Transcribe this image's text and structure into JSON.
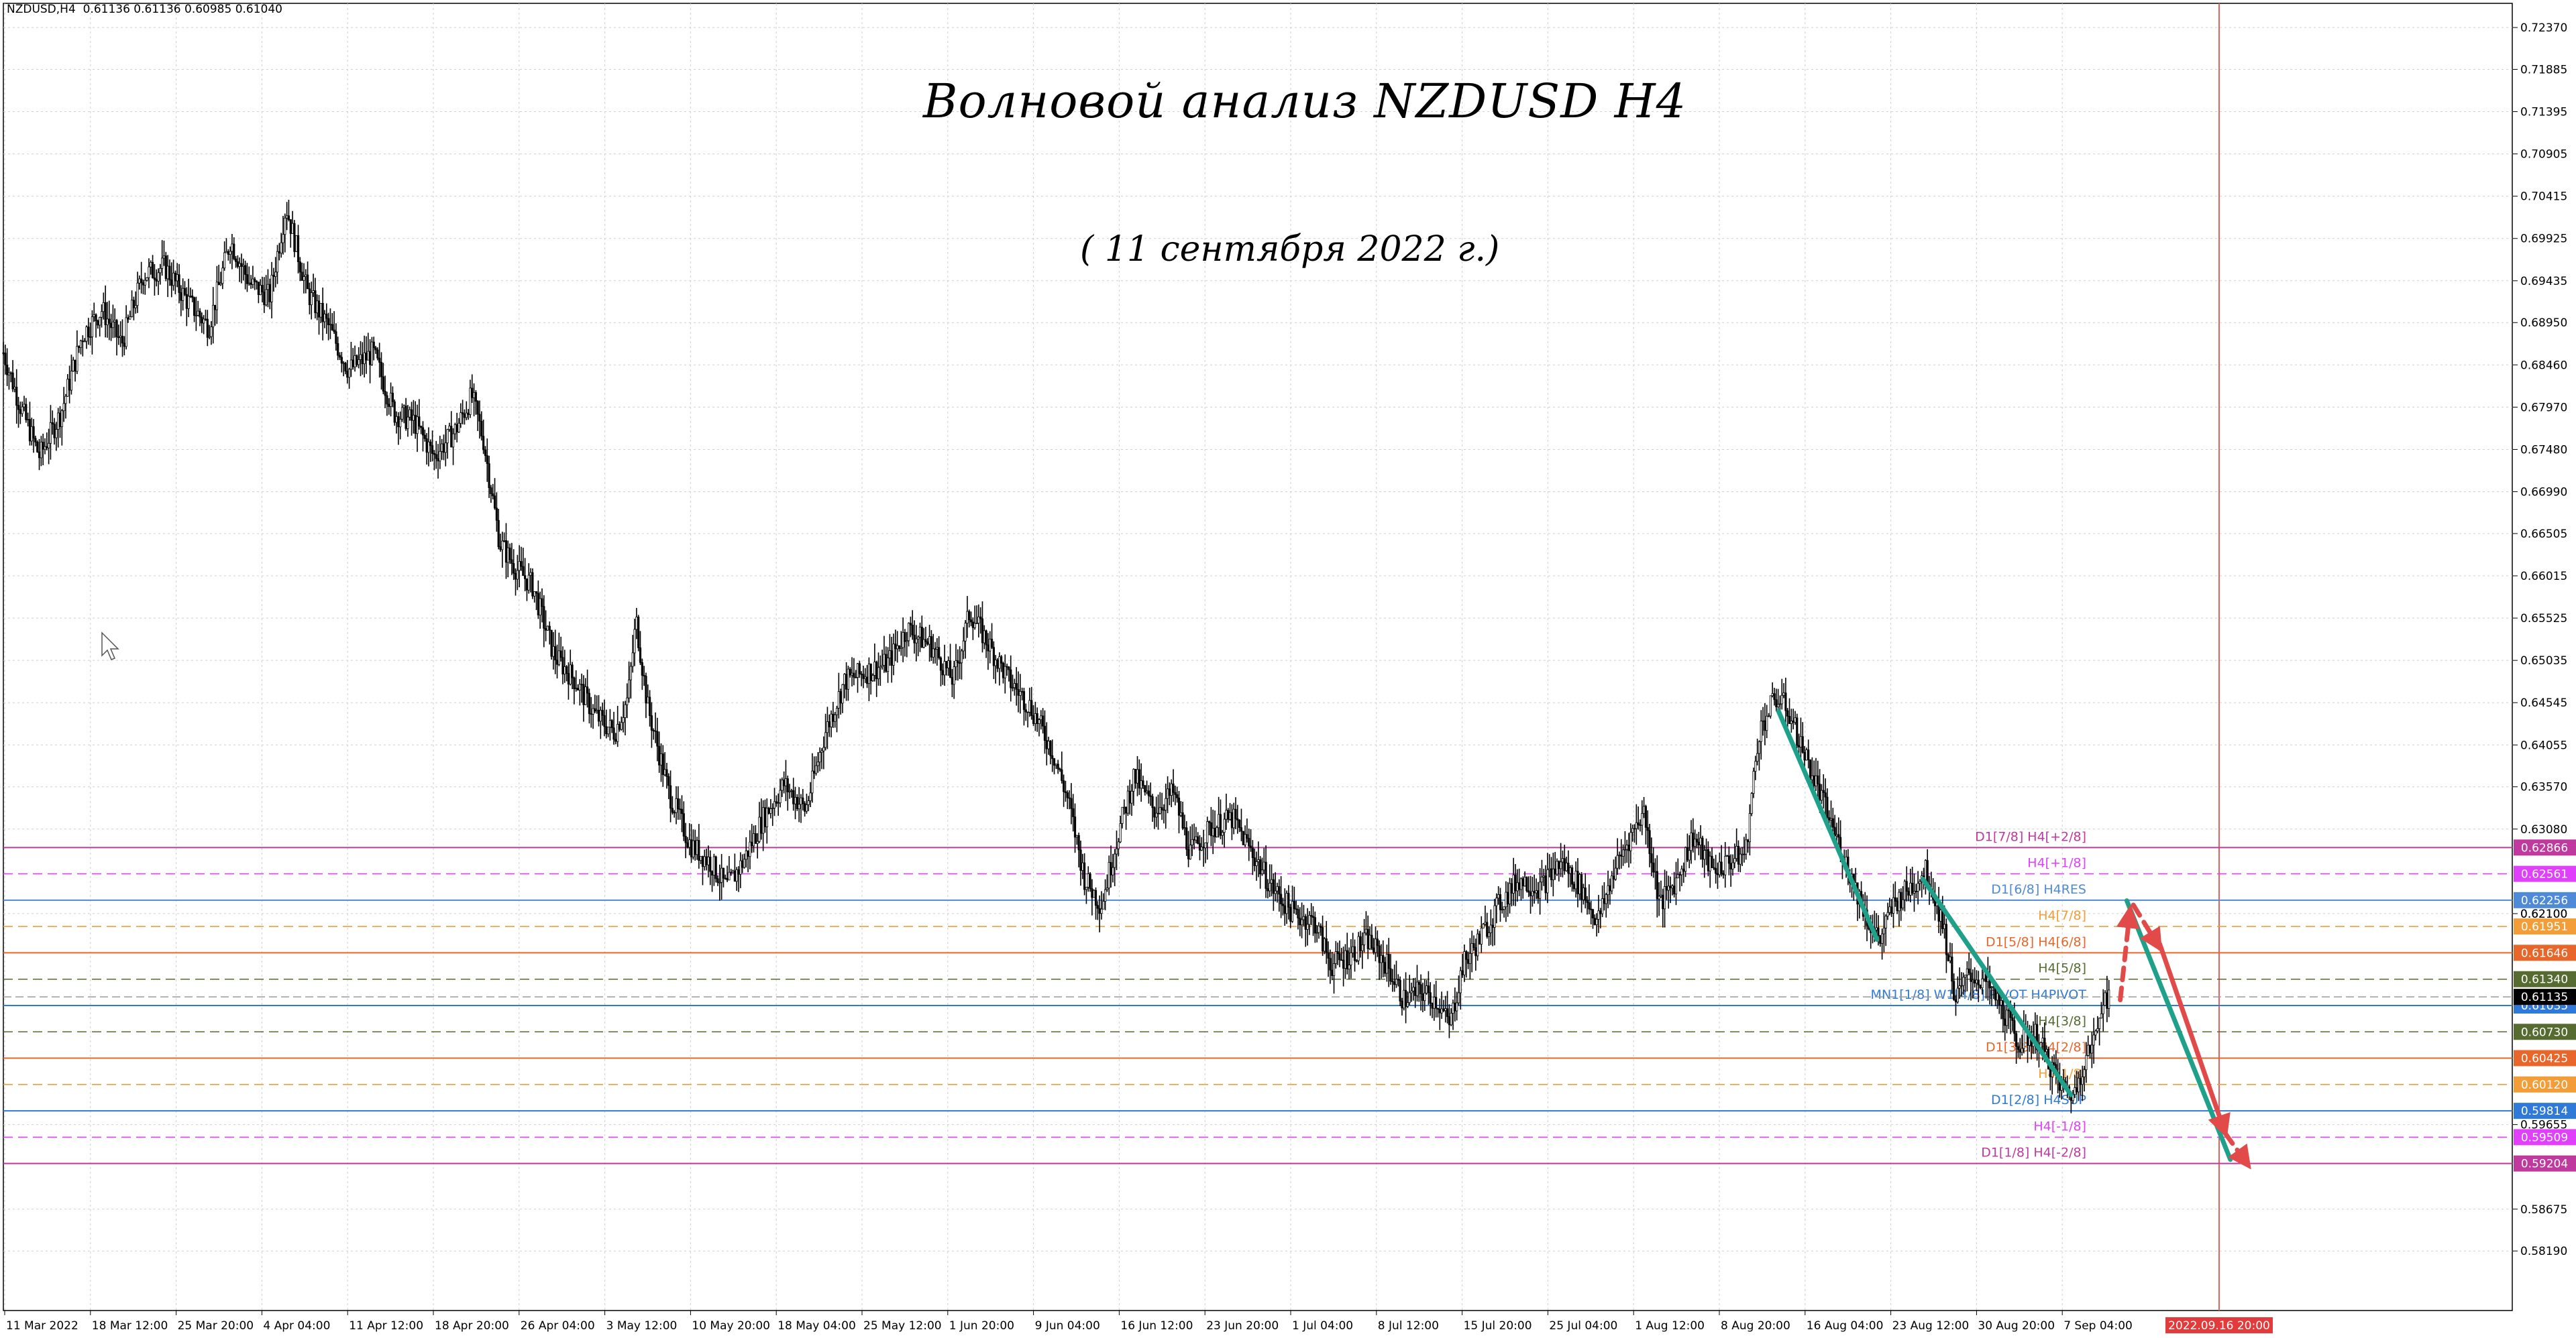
{
  "header": {
    "symbol": "NZDUSD,H4",
    "ohlc": "0.61136 0.61136 0.60985 0.61040"
  },
  "title": "Волновой анализ NZDUSD H4",
  "subtitle": "( 11 сентября 2022 г.)",
  "chart_data": {
    "type": "candlestick",
    "instrument": "NZDUSD",
    "timeframe": "H4",
    "y_range": [
      0.575,
      0.7265
    ],
    "price_ticks": [
      "0.72370",
      "0.71885",
      "0.71395",
      "0.70905",
      "0.70415",
      "0.69925",
      "0.69435",
      "0.68950",
      "0.68460",
      "0.67970",
      "0.67480",
      "0.66990",
      "0.66505",
      "0.66015",
      "0.65525",
      "0.65035",
      "0.64545",
      "0.64055",
      "0.63570",
      "0.63080",
      "0.62100",
      "0.59655",
      "0.58675",
      "0.58190"
    ],
    "x_ticks": [
      "11 Mar 2022",
      "18 Mar 12:00",
      "25 Mar 20:00",
      "4 Apr 04:00",
      "11 Apr 12:00",
      "18 Apr 20:00",
      "26 Apr 04:00",
      "3 May 12:00",
      "10 May 20:00",
      "18 May 04:00",
      "25 May 12:00",
      "1 Jun 20:00",
      "9 Jun 04:00",
      "16 Jun 12:00",
      "23 Jun 20:00",
      "1 Jul 04:00",
      "8 Jul 12:00",
      "15 Jul 20:00",
      "25 Jul 04:00",
      "1 Aug 12:00",
      "8 Aug 20:00",
      "16 Aug 04:00",
      "23 Aug 12:00",
      "30 Aug 20:00",
      "7 Sep 04:00"
    ],
    "future_time_label": "2022.09.16 20:00",
    "price_path": [
      [
        0,
        0.686
      ],
      [
        10,
        0.68
      ],
      [
        22,
        0.674
      ],
      [
        35,
        0.679
      ],
      [
        48,
        0.688
      ],
      [
        60,
        0.691
      ],
      [
        72,
        0.687
      ],
      [
        85,
        0.695
      ],
      [
        98,
        0.696
      ],
      [
        112,
        0.692
      ],
      [
        125,
        0.689
      ],
      [
        138,
        0.699
      ],
      [
        150,
        0.694
      ],
      [
        162,
        0.6925
      ],
      [
        172,
        0.703
      ],
      [
        185,
        0.693
      ],
      [
        198,
        0.689
      ],
      [
        210,
        0.684
      ],
      [
        225,
        0.686
      ],
      [
        238,
        0.679
      ],
      [
        250,
        0.678
      ],
      [
        262,
        0.674
      ],
      [
        275,
        0.677
      ],
      [
        285,
        0.681
      ],
      [
        292,
        0.676
      ],
      [
        302,
        0.664
      ],
      [
        312,
        0.661
      ],
      [
        322,
        0.659
      ],
      [
        335,
        0.651
      ],
      [
        348,
        0.648
      ],
      [
        360,
        0.644
      ],
      [
        372,
        0.642
      ],
      [
        380,
        0.646
      ],
      [
        385,
        0.655
      ],
      [
        392,
        0.645
      ],
      [
        405,
        0.635
      ],
      [
        418,
        0.629
      ],
      [
        430,
        0.627
      ],
      [
        440,
        0.624
      ],
      [
        450,
        0.627
      ],
      [
        462,
        0.632
      ],
      [
        475,
        0.636
      ],
      [
        488,
        0.633
      ],
      [
        500,
        0.642
      ],
      [
        512,
        0.648
      ],
      [
        525,
        0.649
      ],
      [
        538,
        0.65
      ],
      [
        550,
        0.654
      ],
      [
        565,
        0.652
      ],
      [
        578,
        0.648
      ],
      [
        588,
        0.656
      ],
      [
        600,
        0.652
      ],
      [
        612,
        0.648
      ],
      [
        625,
        0.645
      ],
      [
        638,
        0.64
      ],
      [
        648,
        0.634
      ],
      [
        658,
        0.625
      ],
      [
        668,
        0.622
      ],
      [
        678,
        0.63
      ],
      [
        688,
        0.637
      ],
      [
        700,
        0.633
      ],
      [
        712,
        0.635
      ],
      [
        722,
        0.628
      ],
      [
        735,
        0.631
      ],
      [
        748,
        0.632
      ],
      [
        760,
        0.628
      ],
      [
        772,
        0.624
      ],
      [
        785,
        0.621
      ],
      [
        798,
        0.62
      ],
      [
        808,
        0.615
      ],
      [
        818,
        0.616
      ],
      [
        830,
        0.618
      ],
      [
        842,
        0.615
      ],
      [
        852,
        0.611
      ],
      [
        862,
        0.612
      ],
      [
        872,
        0.611
      ],
      [
        880,
        0.608
      ],
      [
        888,
        0.615
      ],
      [
        898,
        0.618
      ],
      [
        910,
        0.622
      ],
      [
        922,
        0.625
      ],
      [
        935,
        0.624
      ],
      [
        948,
        0.627
      ],
      [
        960,
        0.624
      ],
      [
        970,
        0.62
      ],
      [
        980,
        0.626
      ],
      [
        990,
        0.63
      ],
      [
        998,
        0.633
      ],
      [
        1008,
        0.622
      ],
      [
        1018,
        0.625
      ],
      [
        1028,
        0.63
      ],
      [
        1040,
        0.626
      ],
      [
        1050,
        0.627
      ],
      [
        1060,
        0.628
      ],
      [
        1068,
        0.642
      ],
      [
        1078,
        0.646
      ],
      [
        1085,
        0.645
      ],
      [
        1095,
        0.64
      ],
      [
        1105,
        0.635
      ],
      [
        1115,
        0.63
      ],
      [
        1125,
        0.625
      ],
      [
        1135,
        0.62
      ],
      [
        1142,
        0.618
      ],
      [
        1150,
        0.622
      ],
      [
        1160,
        0.624
      ],
      [
        1170,
        0.626
      ],
      [
        1180,
        0.62
      ],
      [
        1188,
        0.611
      ],
      [
        1196,
        0.614
      ],
      [
        1206,
        0.613
      ],
      [
        1216,
        0.61
      ],
      [
        1226,
        0.606
      ],
      [
        1236,
        0.607
      ],
      [
        1244,
        0.604
      ],
      [
        1252,
        0.601
      ],
      [
        1260,
        0.6
      ],
      [
        1266,
        0.604
      ],
      [
        1272,
        0.606
      ],
      [
        1278,
        0.612
      ],
      [
        1282,
        0.6104
      ]
    ],
    "levels": [
      {
        "label": "D1[7/8] H4[+2/8]",
        "price": "0.62866",
        "value": 0.62866,
        "color": "#c0399e",
        "style": "solid"
      },
      {
        "label": "H4[+1/8]",
        "price": "0.62561",
        "value": 0.62561,
        "color": "#e040fb",
        "style": "dash"
      },
      {
        "label": "D1[6/8] H4RES",
        "price": "0.62256",
        "value": 0.62256,
        "color": "#4e8ad8",
        "style": "solid"
      },
      {
        "label": "H4[7/8]",
        "price": "0.61951",
        "value": 0.61951,
        "color": "#f29d38",
        "style": "dash"
      },
      {
        "label": "D1[5/8] H4[6/8]",
        "price": "0.61646",
        "value": 0.61646,
        "color": "#e8662a",
        "style": "solid"
      },
      {
        "label": "H4[5/8]",
        "price": "0.61340",
        "value": 0.6134,
        "color": "#556b2f",
        "style": "dash"
      },
      {
        "label": "MN1[1/8] W1[4/8] PIVOT H4PIVOT",
        "price": "0.61035",
        "value": 0.61035,
        "color": "#2f7ad8",
        "style": "solid"
      },
      {
        "label": "H4[3/8]",
        "price": "0.60730",
        "value": 0.6073,
        "color": "#556b2f",
        "style": "dash"
      },
      {
        "label": "D1[3/8] H4[2/8]",
        "price": "0.60425",
        "value": 0.60425,
        "color": "#e8662a",
        "style": "solid"
      },
      {
        "label": "H4[1/8]",
        "price": "0.60120",
        "value": 0.6012,
        "color": "#f29d38",
        "style": "dash"
      },
      {
        "label": "D1[2/8] H4SUP",
        "price": "0.59814",
        "value": 0.59814,
        "color": "#2f7ad8",
        "style": "solid"
      },
      {
        "label": "H4[-1/8]",
        "price": "0.59509",
        "value": 0.59509,
        "color": "#e040fb",
        "style": "dash"
      },
      {
        "label": "D1[1/8] H4[-2/8]",
        "price": "0.59204",
        "value": 0.59204,
        "color": "#c0399e",
        "style": "solid"
      }
    ],
    "current_price_label": "0.61135",
    "extra_tag": "0.62100",
    "trendlines": [
      {
        "color": "#1fa08a",
        "from": [
          1080,
          0.6445
        ],
        "to": [
          1140,
          0.618
        ]
      },
      {
        "color": "#1fa08a",
        "from": [
          1168,
          0.625
        ],
        "to": [
          1258,
          0.6
        ]
      },
      {
        "color": "#1fa08a",
        "from": [
          1292,
          0.6225
        ],
        "to": [
          1355,
          0.5925
        ]
      },
      {
        "color": "#e24a4a",
        "from": [
          1288,
          0.611
        ],
        "to": [
          1294,
          0.6215
        ],
        "dashed": true
      },
      {
        "color": "#e24a4a",
        "from": [
          1296,
          0.622
        ],
        "to": [
          1312,
          0.617
        ],
        "dashed": true
      },
      {
        "color": "#e24a4a",
        "from": [
          1312,
          0.6175
        ],
        "to": [
          1352,
          0.5955
        ]
      },
      {
        "color": "#e24a4a",
        "from": [
          1352,
          0.5955
        ],
        "to": [
          1366,
          0.5918
        ],
        "dashed": true
      }
    ]
  }
}
